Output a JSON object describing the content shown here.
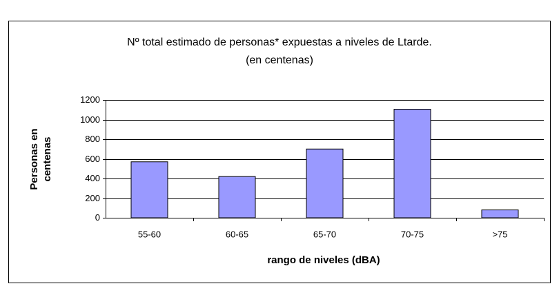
{
  "chart_data": {
    "type": "bar",
    "title": "Nº total estimado de personas* expuestas a niveles de Ltarde.",
    "subtitle": "(en centenas)",
    "ylabel": [
      "Personas en",
      "centenas"
    ],
    "xlabel": "rango de niveles (dBA)",
    "categories": [
      "55-60",
      "60-65",
      "65-70",
      "70-75",
      ">75"
    ],
    "values": [
      570,
      420,
      700,
      1105,
      80
    ],
    "color": "#9999ff",
    "ylim": [
      0,
      1200
    ],
    "yticks": [
      0,
      200,
      400,
      600,
      800,
      1000,
      1200
    ],
    "grid": true
  }
}
